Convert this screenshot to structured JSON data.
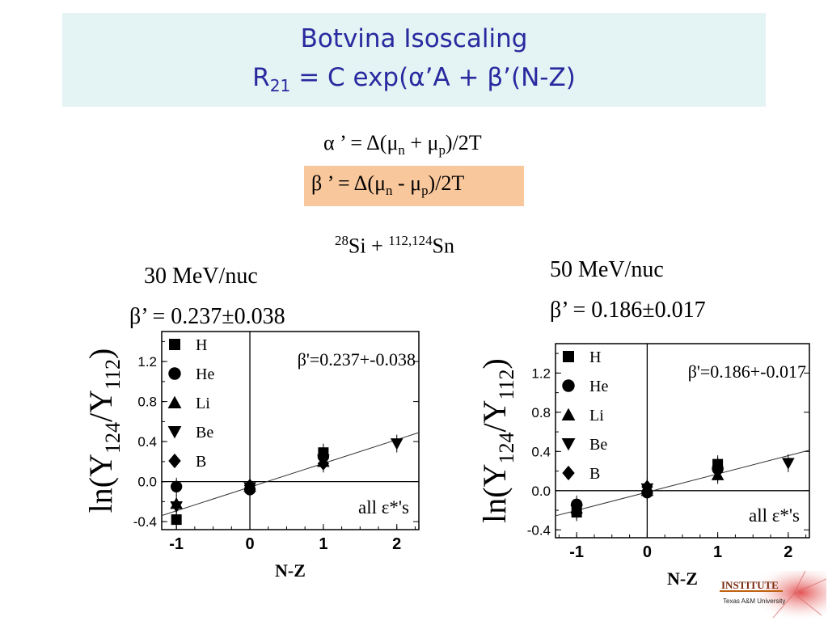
{
  "slide": {
    "title_line1": "Botvina Isoscaling",
    "title_line2": "R21 = C exp(α’A + β’(N-Z)",
    "eq_alpha": "α ’ = Δ(μn + μp)/2T",
    "eq_beta": "β ’ = Δ(μn - μp)/2T",
    "reaction": "28Si + 112,124Sn",
    "left_energy": "30 MeV/nuc",
    "left_beta": "β’ = 0.237±0.038",
    "right_energy": "50 MeV/nuc",
    "right_beta": "β’ = 0.186±0.017",
    "logo_text": "INSTITUTE",
    "logo_sub": "Texas A&M University"
  },
  "colors": {
    "title": "#2a2aa0",
    "title_bg": "#e4f3f3",
    "highlight": "#f9c79c"
  },
  "chart_data": [
    {
      "type": "scatter",
      "xlabel": "N-Z",
      "ylabel": "ln(Y124/Y112)",
      "annotation": "β'=0.237+-0.038",
      "note": "all ε*'s",
      "xticks": [
        "-1",
        "0",
        "1",
        "2"
      ],
      "yticks": [
        "-0.4",
        "0.0",
        "0.4",
        "0.8",
        "1.2"
      ],
      "xlim": [
        -1.2,
        2.3
      ],
      "ylim": [
        -0.48,
        1.5
      ],
      "legend": [
        "H",
        "He",
        "Li",
        "Be",
        "B"
      ],
      "series": [
        {
          "name": "H",
          "marker": "square",
          "points": [
            [
              -1,
              -0.38
            ],
            [
              1,
              0.29
            ]
          ]
        },
        {
          "name": "He",
          "marker": "circle",
          "points": [
            [
              -1,
              -0.05
            ],
            [
              0,
              -0.08
            ],
            [
              1,
              0.25
            ]
          ]
        },
        {
          "name": "Li",
          "marker": "triangle",
          "points": [
            [
              -1,
              -0.22
            ],
            [
              0,
              -0.05
            ],
            [
              1,
              0.2
            ]
          ]
        },
        {
          "name": "Be",
          "marker": "tri-down",
          "points": [
            [
              -1,
              -0.25
            ],
            [
              0,
              -0.06
            ],
            [
              1,
              0.22
            ],
            [
              2,
              0.38
            ]
          ]
        },
        {
          "name": "B",
          "marker": "diamond",
          "points": [
            [
              0,
              -0.04
            ],
            [
              1,
              0.18
            ]
          ]
        }
      ],
      "fit": {
        "slope": 0.237,
        "intercept": -0.055
      }
    },
    {
      "type": "scatter",
      "xlabel": "N-Z",
      "ylabel": "ln(Y124/Y112)",
      "annotation": "β'=0.186+-0.017",
      "note": "all ε*'s",
      "xticks": [
        "-1",
        "0",
        "1",
        "2"
      ],
      "yticks": [
        "-0.4",
        "0.0",
        "0.4",
        "0.8",
        "1.2"
      ],
      "xlim": [
        -1.3,
        2.3
      ],
      "ylim": [
        -0.48,
        1.5
      ],
      "legend": [
        "H",
        "He",
        "Li",
        "Be",
        "B"
      ],
      "series": [
        {
          "name": "H",
          "marker": "square",
          "points": [
            [
              -1,
              -0.22
            ],
            [
              1,
              0.27
            ]
          ]
        },
        {
          "name": "He",
          "marker": "circle",
          "points": [
            [
              -1,
              -0.14
            ],
            [
              0,
              -0.02
            ],
            [
              1,
              0.22
            ]
          ]
        },
        {
          "name": "Li",
          "marker": "triangle",
          "points": [
            [
              -1,
              -0.18
            ],
            [
              0,
              0.0
            ],
            [
              1,
              0.16
            ]
          ]
        },
        {
          "name": "Be",
          "marker": "tri-down",
          "points": [
            [
              -1,
              -0.2
            ],
            [
              0,
              0.02
            ],
            [
              1,
              0.18
            ],
            [
              2,
              0.28
            ]
          ]
        },
        {
          "name": "B",
          "marker": "diamond",
          "points": [
            [
              0,
              0.04
            ],
            [
              1,
              0.25
            ]
          ]
        }
      ],
      "fit": {
        "slope": 0.186,
        "intercept": -0.015
      }
    }
  ]
}
